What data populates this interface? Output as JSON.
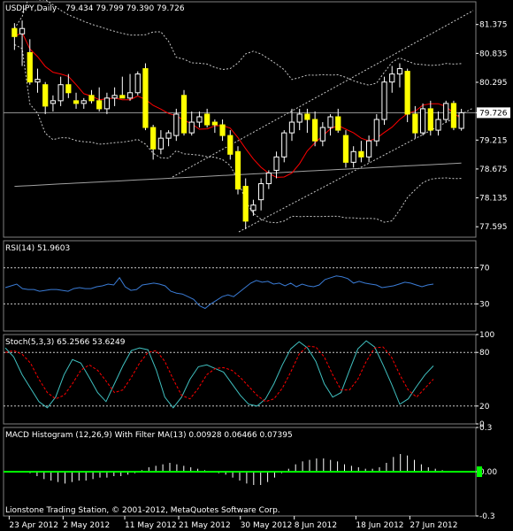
{
  "chart_data": [
    {
      "type": "candlestick",
      "pane": "price",
      "title": "USDJPY,Daily",
      "ohlc_text": "79.434 79.799 79.390 79.726",
      "ylim": [
        77.4,
        81.8
      ],
      "yticks": [
        "81.375",
        "80.835",
        "80.295",
        "79.726",
        "79.215",
        "78.675",
        "78.135",
        "77.595"
      ],
      "ytick_values": [
        81.375,
        80.835,
        80.295,
        79.726,
        79.215,
        78.675,
        78.135,
        77.595
      ],
      "last_price": "79.726",
      "candles": [
        {
          "o": 81.3,
          "h": 81.4,
          "l": 80.9,
          "c": 81.15
        },
        {
          "o": 81.2,
          "h": 81.45,
          "l": 80.6,
          "c": 81.3
        },
        {
          "o": 80.85,
          "h": 81.1,
          "l": 80.25,
          "c": 80.3
        },
        {
          "o": 80.3,
          "h": 80.55,
          "l": 80.1,
          "c": 80.35
        },
        {
          "o": 80.25,
          "h": 80.3,
          "l": 79.7,
          "c": 79.85
        },
        {
          "o": 79.9,
          "h": 80.05,
          "l": 79.75,
          "c": 79.95
        },
        {
          "o": 79.95,
          "h": 80.4,
          "l": 79.85,
          "c": 80.25
        },
        {
          "o": 80.25,
          "h": 80.45,
          "l": 80.0,
          "c": 80.1
        },
        {
          "o": 79.95,
          "h": 80.1,
          "l": 79.8,
          "c": 79.9
        },
        {
          "o": 79.9,
          "h": 80.0,
          "l": 79.8,
          "c": 79.95
        },
        {
          "o": 80.05,
          "h": 80.15,
          "l": 79.9,
          "c": 79.95
        },
        {
          "o": 79.95,
          "h": 80.2,
          "l": 79.75,
          "c": 79.8
        },
        {
          "o": 79.8,
          "h": 80.1,
          "l": 79.7,
          "c": 80.0
        },
        {
          "o": 80.0,
          "h": 80.2,
          "l": 79.85,
          "c": 80.05
        },
        {
          "o": 80.05,
          "h": 80.4,
          "l": 80.0,
          "c": 80.0
        },
        {
          "o": 80.0,
          "h": 80.45,
          "l": 79.95,
          "c": 80.1
        },
        {
          "o": 80.1,
          "h": 80.5,
          "l": 80.05,
          "c": 80.45
        },
        {
          "o": 80.55,
          "h": 80.65,
          "l": 79.4,
          "c": 79.45
        },
        {
          "o": 79.45,
          "h": 79.5,
          "l": 78.85,
          "c": 79.05
        },
        {
          "o": 79.05,
          "h": 79.4,
          "l": 78.95,
          "c": 79.25
        },
        {
          "o": 79.25,
          "h": 79.4,
          "l": 79.1,
          "c": 79.35
        },
        {
          "o": 79.3,
          "h": 79.8,
          "l": 79.2,
          "c": 79.7
        },
        {
          "o": 80.05,
          "h": 80.15,
          "l": 79.3,
          "c": 79.35
        },
        {
          "o": 79.35,
          "h": 79.75,
          "l": 79.3,
          "c": 79.55
        },
        {
          "o": 79.55,
          "h": 79.75,
          "l": 79.45,
          "c": 79.65
        },
        {
          "o": 79.7,
          "h": 79.8,
          "l": 79.45,
          "c": 79.5
        },
        {
          "o": 79.55,
          "h": 79.6,
          "l": 79.35,
          "c": 79.5
        },
        {
          "o": 79.5,
          "h": 79.6,
          "l": 79.2,
          "c": 79.3
        },
        {
          "o": 79.3,
          "h": 79.4,
          "l": 78.85,
          "c": 78.95
        },
        {
          "o": 79.0,
          "h": 79.1,
          "l": 78.2,
          "c": 78.3
        },
        {
          "o": 78.35,
          "h": 78.5,
          "l": 77.55,
          "c": 77.7
        },
        {
          "o": 77.9,
          "h": 78.1,
          "l": 77.8,
          "c": 78.0
        },
        {
          "o": 78.1,
          "h": 78.5,
          "l": 77.9,
          "c": 78.4
        },
        {
          "o": 78.4,
          "h": 78.65,
          "l": 78.3,
          "c": 78.6
        },
        {
          "o": 78.65,
          "h": 79.0,
          "l": 78.5,
          "c": 78.9
        },
        {
          "o": 78.9,
          "h": 79.4,
          "l": 78.8,
          "c": 79.35
        },
        {
          "o": 79.35,
          "h": 79.8,
          "l": 79.2,
          "c": 79.55
        },
        {
          "o": 79.55,
          "h": 79.8,
          "l": 79.4,
          "c": 79.7
        },
        {
          "o": 79.7,
          "h": 79.8,
          "l": 79.35,
          "c": 79.6
        },
        {
          "o": 79.6,
          "h": 79.75,
          "l": 79.1,
          "c": 79.2
        },
        {
          "o": 79.2,
          "h": 79.55,
          "l": 79.1,
          "c": 79.45
        },
        {
          "o": 79.45,
          "h": 79.7,
          "l": 79.3,
          "c": 79.65
        },
        {
          "o": 79.65,
          "h": 79.8,
          "l": 79.35,
          "c": 79.4
        },
        {
          "o": 79.3,
          "h": 79.4,
          "l": 78.7,
          "c": 78.8
        },
        {
          "o": 78.8,
          "h": 79.1,
          "l": 78.7,
          "c": 79.0
        },
        {
          "o": 79.0,
          "h": 79.2,
          "l": 78.8,
          "c": 78.9
        },
        {
          "o": 78.9,
          "h": 79.3,
          "l": 78.8,
          "c": 79.2
        },
        {
          "o": 79.2,
          "h": 79.7,
          "l": 79.1,
          "c": 79.6
        },
        {
          "o": 79.6,
          "h": 80.4,
          "l": 79.5,
          "c": 80.3
        },
        {
          "o": 80.3,
          "h": 80.6,
          "l": 80.1,
          "c": 80.45
        },
        {
          "o": 80.45,
          "h": 80.65,
          "l": 80.2,
          "c": 80.55
        },
        {
          "o": 80.5,
          "h": 80.55,
          "l": 79.55,
          "c": 79.7
        },
        {
          "o": 79.7,
          "h": 79.85,
          "l": 79.25,
          "c": 79.35
        },
        {
          "o": 79.35,
          "h": 79.9,
          "l": 79.3,
          "c": 79.8
        },
        {
          "o": 79.8,
          "h": 79.95,
          "l": 79.3,
          "c": 79.4
        },
        {
          "o": 79.4,
          "h": 79.75,
          "l": 79.3,
          "c": 79.6
        },
        {
          "o": 79.6,
          "h": 79.95,
          "l": 79.55,
          "c": 79.9
        },
        {
          "o": 79.9,
          "h": 79.95,
          "l": 79.4,
          "c": 79.45
        },
        {
          "o": 79.434,
          "h": 79.799,
          "l": 79.39,
          "c": 79.726
        }
      ],
      "ma_fast_color": "#ff0000",
      "ma_slow_color": "#a0a0a0",
      "band_color": "#c8c8c8",
      "channel_color": "#c8c8c8",
      "channel_upper": [
        [
          30,
          78.65
        ],
        [
          75,
          81.6
        ]
      ],
      "channel_lower": [
        [
          37,
          77.6
        ],
        [
          75,
          80.1
        ]
      ],
      "x_labels": [
        "23 Apr 2012",
        "2 May 2012",
        "11 May 2012",
        "21 May 2012",
        "30 May 2012",
        "8 Jun 2012",
        "18 Jun 2012",
        "27 Jun 2012"
      ],
      "x_label_index": [
        0,
        7,
        15,
        22,
        30,
        37,
        45,
        52
      ]
    },
    {
      "type": "line",
      "pane": "rsi",
      "title": "RSI(14) 51.9603",
      "ylim": [
        0,
        100
      ],
      "yticks": [
        "70",
        "30"
      ],
      "ytick_values": [
        70,
        30
      ],
      "levels": [
        70,
        30
      ],
      "series": [
        {
          "color": "#3a7bd5",
          "values": [
            48,
            50,
            52,
            47,
            46,
            46,
            44,
            45,
            46,
            46,
            45,
            44,
            47,
            48,
            47,
            47,
            49,
            50,
            52,
            51,
            59,
            49,
            45,
            46,
            51,
            52,
            53,
            52,
            50,
            44,
            42,
            41,
            38,
            35,
            28,
            25,
            30,
            34,
            38,
            40,
            38,
            43,
            48,
            53,
            56,
            54,
            55,
            52,
            53,
            50,
            53,
            49,
            52,
            50,
            49,
            51,
            57,
            59,
            61,
            60,
            58,
            53,
            55,
            53,
            52,
            51,
            48,
            49,
            50,
            52,
            54,
            53,
            51,
            49,
            51,
            52
          ]
        }
      ]
    },
    {
      "type": "line",
      "pane": "stochastic",
      "title": "Stoch(5,3,3) 65.2566 53.6249",
      "ylim": [
        0,
        100
      ],
      "yticks": [
        "100",
        "80",
        "20",
        "0"
      ],
      "ytick_values": [
        100,
        80,
        20,
        0
      ],
      "levels": [
        80,
        20
      ],
      "series": [
        {
          "color": "#40c0c0",
          "values": [
            85,
            75,
            55,
            40,
            25,
            18,
            30,
            55,
            72,
            68,
            52,
            35,
            25,
            45,
            65,
            82,
            85,
            83,
            60,
            30,
            18,
            30,
            50,
            64,
            66,
            62,
            58,
            45,
            32,
            22,
            20,
            28,
            45,
            66,
            84,
            92,
            85,
            70,
            45,
            30,
            35,
            60,
            84,
            93,
            86,
            66,
            45,
            22,
            28,
            42,
            55,
            65
          ]
        },
        {
          "color": "#ff0000",
          "values": [
            80,
            82,
            78,
            68,
            50,
            35,
            28,
            32,
            45,
            60,
            66,
            60,
            48,
            35,
            38,
            52,
            68,
            80,
            82,
            70,
            50,
            32,
            28,
            40,
            55,
            62,
            63,
            60,
            52,
            42,
            32,
            25,
            28,
            40,
            58,
            78,
            87,
            86,
            75,
            55,
            38,
            38,
            50,
            70,
            85,
            86,
            75,
            55,
            38,
            30,
            40,
            50
          ]
        }
      ]
    },
    {
      "type": "bar",
      "pane": "macd",
      "title": "MACD Histogram (12,26,9) With Filter MA(13) 0.00928 0.06466 0.07395",
      "ylim": [
        -0.3,
        0.3
      ],
      "yticks": [
        "0.3",
        "0.00",
        "-0.3"
      ],
      "ytick_values": [
        0.3,
        0.0,
        -0.3
      ],
      "zero_line_color": "#00ff00",
      "bar_color": "#ffffff",
      "values": [
        -0.01,
        -0.03,
        -0.05,
        -0.06,
        -0.07,
        -0.08,
        -0.07,
        -0.06,
        -0.06,
        -0.05,
        -0.04,
        -0.04,
        -0.03,
        -0.03,
        -0.02,
        -0.01,
        0.01,
        0.03,
        0.04,
        0.05,
        0.06,
        0.05,
        0.04,
        0.03,
        0.02,
        0.01,
        0.0,
        -0.01,
        -0.02,
        -0.04,
        -0.06,
        -0.08,
        -0.09,
        -0.09,
        -0.07,
        -0.04,
        -0.01,
        0.02,
        0.05,
        0.07,
        0.08,
        0.09,
        0.09,
        0.08,
        0.07,
        0.05,
        0.04,
        0.03,
        0.02,
        0.02,
        0.03,
        0.06,
        0.1,
        0.12,
        0.11,
        0.08,
        0.05,
        0.03,
        0.02,
        0.01
      ]
    }
  ],
  "footer": {
    "copyright": "Lionstone Trading Station, © 2001-2012, MetaQuotes Software Corp."
  }
}
